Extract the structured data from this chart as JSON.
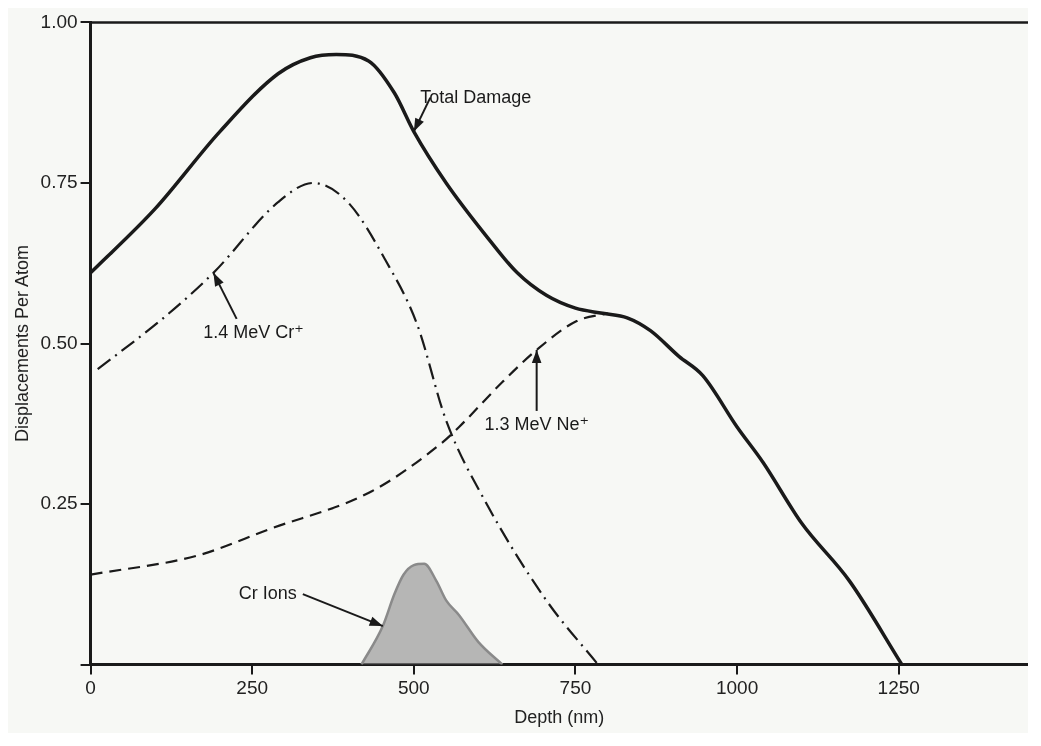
{
  "chart_data": {
    "type": "line",
    "xlabel": "Depth (nm)",
    "ylabel": "Displacements Per Atom",
    "xlim": [
      0,
      1450
    ],
    "xticks": [
      0,
      250,
      500,
      750,
      1000,
      1250
    ],
    "ylim": [
      0,
      1
    ],
    "yticks": [
      {
        "value": 0,
        "label": null
      },
      0.25,
      {
        "value": 0.5,
        "label": "0.50"
      },
      0.75,
      {
        "value": 1,
        "label": "1.00"
      }
    ],
    "series": [
      {
        "name": "Total Damage",
        "color": "#1a1a1a",
        "line_style": "solid",
        "x": [
          0,
          100,
          200,
          290,
          340,
          380,
          430,
          470,
          500,
          550,
          610,
          660,
          705,
          750,
          792,
          830,
          866,
          910,
          947,
          1000,
          1040,
          1100,
          1174,
          1255
        ],
        "values": [
          0.61,
          0.71,
          0.83,
          0.92,
          0.945,
          0.95,
          0.94,
          0.89,
          0.83,
          0.75,
          0.67,
          0.61,
          0.575,
          0.555,
          0.547,
          0.54,
          0.52,
          0.48,
          0.45,
          0.37,
          0.315,
          0.22,
          0.13,
          0
        ]
      },
      {
        "name": "1.4 MeV Cr⁺",
        "color": "#1a1a1a",
        "line_style": "dashdot",
        "x": [
          11,
          113,
          190,
          290,
          344,
          398,
          456,
          505,
          550,
          610,
          705,
          785
        ],
        "values": [
          0.46,
          0.54,
          0.61,
          0.72,
          0.75,
          0.72,
          0.63,
          0.53,
          0.38,
          0.255,
          0.1,
          0
        ]
      },
      {
        "name": "1.3 MeV Ne⁺",
        "color": "#1a1a1a",
        "line_style": "dashed",
        "x": [
          0,
          166,
          274,
          435,
          543,
          570,
          637,
          690,
          752,
          800
        ],
        "values": [
          0.14,
          0.17,
          0.21,
          0.27,
          0.345,
          0.37,
          0.44,
          0.49,
          0.535,
          0.547
        ]
      },
      {
        "name": "Cr Ions",
        "type": "area",
        "color": "#8a8a8a",
        "line_style": "solid",
        "x": [
          419,
          452,
          470,
          484,
          500,
          516,
          535,
          550,
          570,
          600,
          637
        ],
        "values": [
          0,
          0.06,
          0.11,
          0.14,
          0.155,
          0.157,
          0.13,
          0.1,
          0.077,
          0.035,
          0
        ]
      }
    ]
  }
}
